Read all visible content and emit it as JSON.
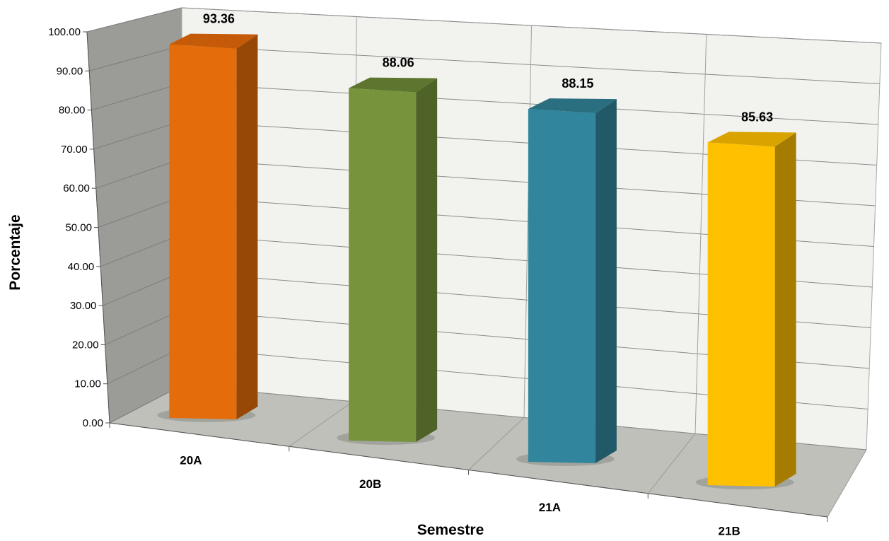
{
  "chart_data": {
    "type": "bar",
    "style": "3d-column",
    "categories": [
      "20A",
      "20B",
      "21A",
      "21B"
    ],
    "values": [
      93.36,
      88.06,
      88.15,
      85.63
    ],
    "data_labels": [
      "93.36",
      "88.06",
      "88.15",
      "85.63"
    ],
    "colors": [
      "#E46C0A",
      "#77933C",
      "#31859C",
      "#FFC000"
    ],
    "side_colors": [
      "#974806",
      "#4F6228",
      "#215968",
      "#A67C00"
    ],
    "top_colors": [
      "#C55A08",
      "#5E7530",
      "#296F80",
      "#D9A300"
    ],
    "xlabel": "Semestre",
    "ylabel": "Porcentaje",
    "ylim": [
      0,
      100
    ],
    "yticks": [
      "0.00",
      "10.00",
      "20.00",
      "30.00",
      "40.00",
      "50.00",
      "60.00",
      "70.00",
      "80.00",
      "90.00",
      "100.00"
    ],
    "grid": true,
    "legend": "none"
  }
}
